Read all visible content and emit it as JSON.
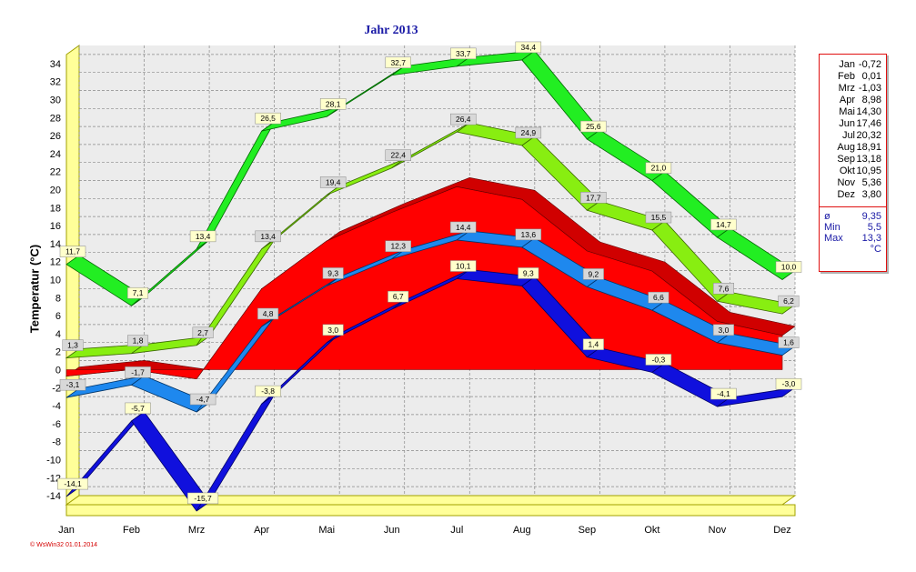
{
  "chart_data": {
    "type": "line",
    "title": "Jahr  2013",
    "ylabel": "Temperatur  (°C)",
    "categories": [
      "Jan",
      "Feb",
      "Mrz",
      "Apr",
      "Mai",
      "Jun",
      "Jul",
      "Aug",
      "Sep",
      "Okt",
      "Nov",
      "Dez"
    ],
    "ylim": [
      -15,
      35
    ],
    "yticks": [
      34,
      32,
      30,
      28,
      26,
      24,
      22,
      20,
      18,
      16,
      14,
      12,
      10,
      8,
      6,
      4,
      2,
      0,
      -2,
      -4,
      -6,
      -8,
      -10,
      -12,
      -14
    ],
    "grid": true,
    "series": [
      {
        "values": [
          11.7,
          7.1,
          13.4,
          26.5,
          28.1,
          32.7,
          33.7,
          34.4,
          25.6,
          21.0,
          14.7,
          10.0
        ],
        "color": "#22ee22"
      },
      {
        "values": [
          1.3,
          1.8,
          2.7,
          13.4,
          19.4,
          22.4,
          26.4,
          24.9,
          17.7,
          15.5,
          7.6,
          6.2
        ],
        "color": "#88ee11"
      },
      {
        "values": [
          -0.72,
          0.01,
          -1.03,
          8.98,
          14.3,
          17.46,
          20.32,
          18.91,
          13.18,
          10.95,
          5.36,
          3.8
        ],
        "color": "#ee0000"
      },
      {
        "values": [
          -3.1,
          -1.7,
          -4.7,
          4.8,
          9.3,
          12.3,
          14.4,
          13.6,
          9.2,
          6.6,
          3.0,
          1.6
        ],
        "color": "#1e88ee"
      },
      {
        "values": [
          -14.1,
          -5.7,
          -15.7,
          -3.8,
          3.0,
          6.7,
          10.1,
          9.3,
          1.4,
          -0.3,
          -4.1,
          -3.0
        ],
        "color": "#1010dd"
      }
    ],
    "labels": {
      "max": [
        "11,7",
        "7,1",
        "13,4",
        "26,5",
        "28,1",
        "32,7",
        "33,7",
        "34,4",
        "25,6",
        "21,0",
        "14,7",
        "10,0"
      ],
      "upper": [
        "1,3",
        "1,8",
        "2,7",
        "13,4",
        "19,4",
        "22,4",
        "26,4",
        "24,9",
        "17,7",
        "15,5",
        "7,6",
        "6,2"
      ],
      "lower": [
        "-3,1",
        "-1,7",
        "-4,7",
        "4,8",
        "9,3",
        "12,3",
        "14,4",
        "13,6",
        "9,2",
        "6,6",
        "3,0",
        "1,6"
      ],
      "min": [
        "-14,1",
        "-5,7",
        "-15,7",
        "-3,8",
        "3,0",
        "6,7",
        "10,1",
        "9,3",
        "1,4",
        "-0,3",
        "-4,1",
        "-3,0"
      ]
    },
    "legend": {
      "monthly": [
        {
          "month": "Jan",
          "value": "-0,72"
        },
        {
          "month": "Feb",
          "value": "0,01"
        },
        {
          "month": "Mrz",
          "value": "-1,03"
        },
        {
          "month": "Apr",
          "value": "8,98"
        },
        {
          "month": "Mai",
          "value": "14,30"
        },
        {
          "month": "Jun",
          "value": "17,46"
        },
        {
          "month": "Jul",
          "value": "20,32"
        },
        {
          "month": "Aug",
          "value": "18,91"
        },
        {
          "month": "Sep",
          "value": "13,18"
        },
        {
          "month": "Okt",
          "value": "10,95"
        },
        {
          "month": "Nov",
          "value": "5,36"
        },
        {
          "month": "Dez",
          "value": "3,80"
        }
      ],
      "summary": [
        {
          "key": "ø",
          "value": "9,35"
        },
        {
          "key": "Min",
          "value": "5,5"
        },
        {
          "key": "Max",
          "value": "13,3"
        },
        {
          "key": "",
          "value": "°C"
        }
      ]
    },
    "credit": "© WsWin32  01.01.2014"
  }
}
